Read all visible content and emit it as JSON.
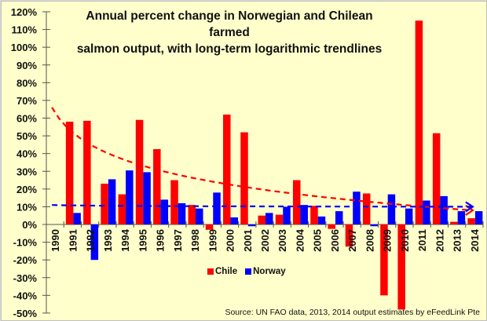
{
  "chart_data": {
    "type": "bar",
    "title": "Annual percent change in Norwegian and Chilean farmed salmon output, with long-term logarithmic trendlines",
    "title_lines": [
      "Annual percent change in Norwegian and Chilean farmed",
      "salmon output, with long-term logarithmic trendlines"
    ],
    "xlabel": "",
    "ylabel": "",
    "ylim": [
      -50,
      120
    ],
    "yticks": [
      -50,
      -40,
      -30,
      -20,
      -10,
      0,
      10,
      20,
      30,
      40,
      50,
      60,
      70,
      80,
      90,
      100,
      110,
      120
    ],
    "ytick_format": "percent",
    "grid": false,
    "legend_position": "bottom-center",
    "categories": [
      "1990",
      "1991",
      "1992",
      "1993",
      "1994",
      "1995",
      "1996",
      "1997",
      "1998",
      "1999",
      "2000",
      "2001",
      "2002",
      "2003",
      "2004",
      "2005",
      "2006",
      "2007",
      "2008",
      "2009",
      "2010",
      "2011",
      "2012",
      "2013",
      "2014"
    ],
    "series": [
      {
        "name": "Chile",
        "color": "#ff0000",
        "values": [
          null,
          58,
          58.5,
          23,
          17,
          59,
          42.5,
          25,
          11,
          -3,
          62,
          52,
          5,
          5.5,
          25,
          10.5,
          -2.5,
          -12.5,
          17.5,
          -40,
          -48,
          115,
          51.5,
          1.5,
          3.5
        ]
      },
      {
        "name": "Norway",
        "color": "#0000ff",
        "values": [
          null,
          6.5,
          -20,
          25.5,
          30.5,
          29.5,
          14,
          12,
          9,
          18,
          4,
          -1,
          6.5,
          10,
          11,
          4.5,
          7.5,
          18.5,
          -1,
          17,
          9,
          13.5,
          16,
          7.5,
          7.5
        ]
      }
    ],
    "trendlines": [
      {
        "series": "Chile",
        "type": "logarithmic",
        "color": "#ff0000",
        "style": "dashed",
        "start": 66,
        "end": 8
      },
      {
        "series": "Norway",
        "type": "logarithmic",
        "color": "#0000ff",
        "style": "dashed",
        "start": 11,
        "end": 10
      }
    ],
    "source": "Source: UN FAO data, 2013, 2014 output estimates by eFeedLink Pte"
  }
}
